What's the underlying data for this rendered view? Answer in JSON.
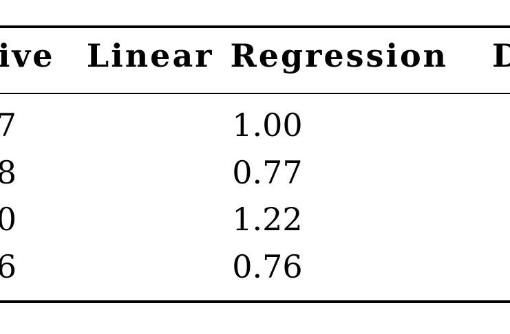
{
  "table": {
    "header": {
      "left_partial": "ive",
      "center": "Linear Regression",
      "right_partial": "D"
    },
    "rows": [
      {
        "left_partial": "7",
        "center": "1.00"
      },
      {
        "left_partial": "8",
        "center": "0.77"
      },
      {
        "left_partial": "0",
        "center": "1.22"
      },
      {
        "left_partial": "6",
        "center": "0.76"
      }
    ],
    "colors": {
      "text": "#000000",
      "background": "#ffffff",
      "rule": "#000000"
    }
  }
}
